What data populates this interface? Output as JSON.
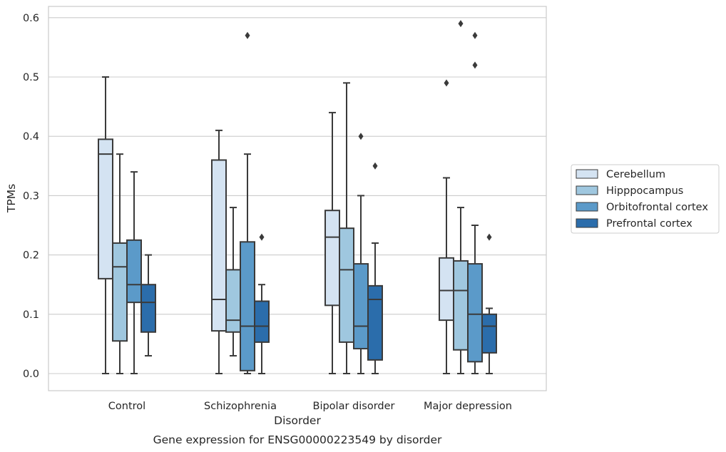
{
  "caption": "Gene expression for ENSG00000223549 by disorder",
  "chart_data": {
    "type": "box",
    "title": "",
    "xlabel": "Disorder",
    "ylabel": "TPMs",
    "ylim": [
      -0.028,
      0.62
    ],
    "yticks": [
      0.0,
      0.1,
      0.2,
      0.3,
      0.4,
      0.5,
      0.6
    ],
    "ytick_labels": [
      "0.0",
      "0.1",
      "0.2",
      "0.3",
      "0.4",
      "0.5",
      "0.6"
    ],
    "grid": "horizontal",
    "legend_position": "right",
    "categories": [
      "Control",
      "Schizophrenia",
      "Bipolar disorder",
      "Major depression"
    ],
    "series": [
      {
        "name": "Cerebellum",
        "color": "#d4e3f2",
        "boxes": [
          {
            "whisker_low": 0.0,
            "q1": 0.16,
            "median": 0.37,
            "q3": 0.395,
            "whisker_high": 0.5,
            "outliers": []
          },
          {
            "whisker_low": 0.0,
            "q1": 0.072,
            "median": 0.125,
            "q3": 0.36,
            "whisker_high": 0.41,
            "outliers": []
          },
          {
            "whisker_low": 0.0,
            "q1": 0.115,
            "median": 0.23,
            "q3": 0.275,
            "whisker_high": 0.44,
            "outliers": []
          },
          {
            "whisker_low": 0.0,
            "q1": 0.09,
            "median": 0.14,
            "q3": 0.195,
            "whisker_high": 0.33,
            "outliers": [
              0.49
            ]
          }
        ]
      },
      {
        "name": "Hipppocampus",
        "color": "#9fc7df",
        "boxes": [
          {
            "whisker_low": 0.0,
            "q1": 0.055,
            "median": 0.18,
            "q3": 0.22,
            "whisker_high": 0.37,
            "outliers": []
          },
          {
            "whisker_low": 0.03,
            "q1": 0.07,
            "median": 0.09,
            "q3": 0.175,
            "whisker_high": 0.28,
            "outliers": []
          },
          {
            "whisker_low": 0.0,
            "q1": 0.053,
            "median": 0.175,
            "q3": 0.245,
            "whisker_high": 0.49,
            "outliers": []
          },
          {
            "whisker_low": 0.0,
            "q1": 0.04,
            "median": 0.14,
            "q3": 0.19,
            "whisker_high": 0.28,
            "outliers": [
              0.59
            ]
          }
        ]
      },
      {
        "name": "Orbitofrontal cortex",
        "color": "#5b9ac9",
        "boxes": [
          {
            "whisker_low": 0.0,
            "q1": 0.12,
            "median": 0.15,
            "q3": 0.225,
            "whisker_high": 0.34,
            "outliers": []
          },
          {
            "whisker_low": 0.0,
            "q1": 0.005,
            "median": 0.08,
            "q3": 0.222,
            "whisker_high": 0.37,
            "outliers": [
              0.57
            ]
          },
          {
            "whisker_low": 0.0,
            "q1": 0.042,
            "median": 0.08,
            "q3": 0.185,
            "whisker_high": 0.3,
            "outliers": [
              0.4
            ]
          },
          {
            "whisker_low": 0.0,
            "q1": 0.02,
            "median": 0.1,
            "q3": 0.185,
            "whisker_high": 0.25,
            "outliers": [
              0.57,
              0.52
            ]
          }
        ]
      },
      {
        "name": "Prefrontal cortex",
        "color": "#2b6dab",
        "boxes": [
          {
            "whisker_low": 0.03,
            "q1": 0.07,
            "median": 0.12,
            "q3": 0.15,
            "whisker_high": 0.2,
            "outliers": []
          },
          {
            "whisker_low": 0.0,
            "q1": 0.053,
            "median": 0.08,
            "q3": 0.122,
            "whisker_high": 0.15,
            "outliers": [
              0.23
            ]
          },
          {
            "whisker_low": 0.0,
            "q1": 0.023,
            "median": 0.125,
            "q3": 0.148,
            "whisker_high": 0.22,
            "outliers": [
              0.35
            ]
          },
          {
            "whisker_low": 0.0,
            "q1": 0.035,
            "median": 0.08,
            "q3": 0.1,
            "whisker_high": 0.11,
            "outliers": [
              0.23
            ]
          }
        ]
      }
    ]
  }
}
